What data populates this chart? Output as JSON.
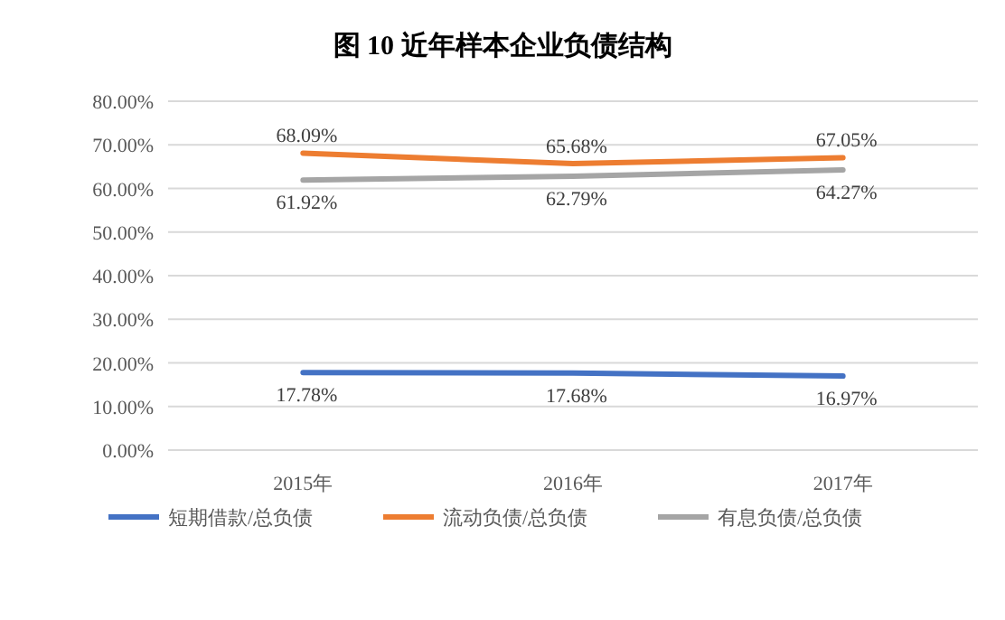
{
  "chart_data": {
    "type": "line",
    "title": "图 10  近年样本企业负债结构",
    "categories": [
      "2015年",
      "2016年",
      "2017年"
    ],
    "series": [
      {
        "name": "短期借款/总负债",
        "color": "#4472c4",
        "values": [
          17.78,
          17.68,
          16.97
        ],
        "value_labels": [
          "17.78%",
          "17.68%",
          "16.97%"
        ]
      },
      {
        "name": "流动负债/总负债",
        "color": "#ed7d31",
        "values": [
          68.09,
          65.68,
          67.05
        ],
        "value_labels": [
          "68.09%",
          "65.68%",
          "67.05%"
        ]
      },
      {
        "name": "有息负债/总负债",
        "color": "#a5a5a5",
        "values": [
          61.92,
          62.79,
          64.27
        ],
        "value_labels": [
          "61.92%",
          "62.79%",
          "64.27%"
        ]
      }
    ],
    "ylim": [
      0,
      80
    ],
    "yticks": [
      {
        "value": 0,
        "label": "0.00%"
      },
      {
        "value": 10,
        "label": "10.00%"
      },
      {
        "value": 20,
        "label": "20.00%"
      },
      {
        "value": 30,
        "label": "30.00%"
      },
      {
        "value": 40,
        "label": "40.00%"
      },
      {
        "value": 50,
        "label": "50.00%"
      },
      {
        "value": 60,
        "label": "60.00%"
      },
      {
        "value": 70,
        "label": "70.00%"
      },
      {
        "value": 80,
        "label": "80.00%"
      }
    ],
    "grid": "y",
    "legend": "bottom",
    "marker": "none",
    "line_style": "solid"
  }
}
